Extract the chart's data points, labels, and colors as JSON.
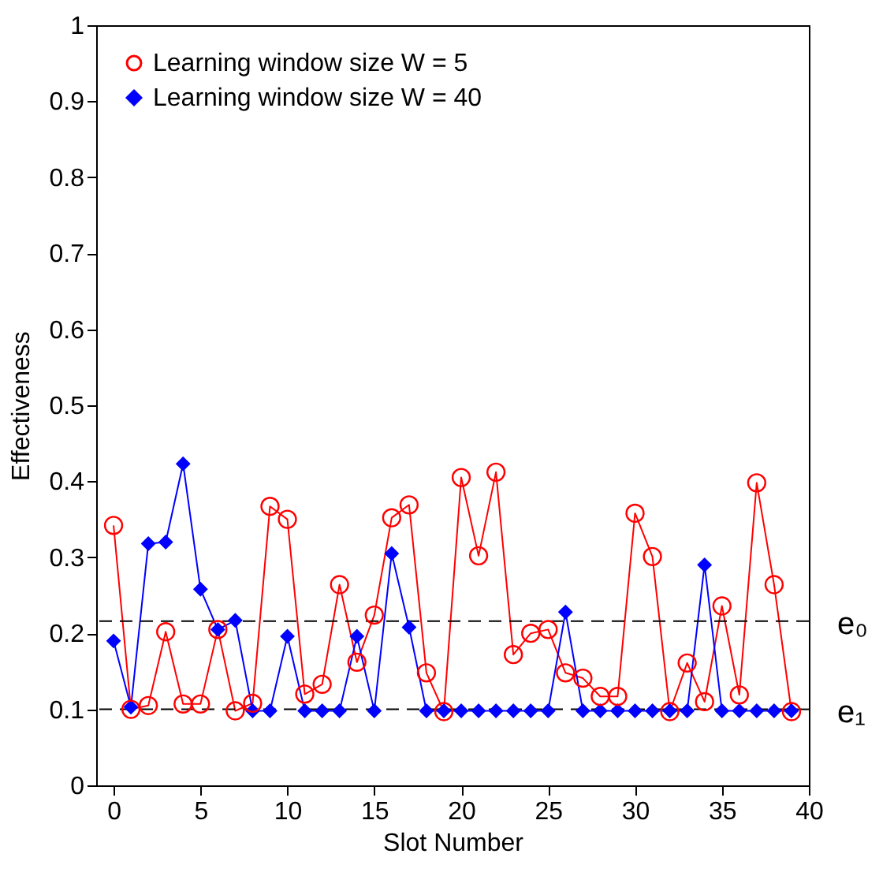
{
  "chart_data": {
    "type": "line",
    "xlabel": "Slot Number",
    "ylabel": "Effectiveness",
    "x": [
      0,
      1,
      2,
      3,
      4,
      5,
      6,
      7,
      8,
      9,
      10,
      11,
      12,
      13,
      14,
      15,
      16,
      17,
      18,
      19,
      20,
      21,
      22,
      23,
      24,
      25,
      26,
      27,
      28,
      29,
      30,
      31,
      32,
      33,
      34,
      35,
      36,
      37,
      38,
      39
    ],
    "series": [
      {
        "name": "Learning window size W = 5",
        "color": "#ff0000",
        "marker": "circle",
        "values": [
          0.342,
          0.1,
          0.105,
          0.202,
          0.107,
          0.107,
          0.205,
          0.098,
          0.108,
          0.367,
          0.35,
          0.12,
          0.133,
          0.264,
          0.162,
          0.224,
          0.352,
          0.369,
          0.148,
          0.097,
          0.405,
          0.302,
          0.412,
          0.172,
          0.2,
          0.205,
          0.148,
          0.141,
          0.117,
          0.117,
          0.358,
          0.301,
          0.097,
          0.161,
          0.11,
          0.236,
          0.119,
          0.398,
          0.264,
          0.097
        ]
      },
      {
        "name": "Learning window size W = 40",
        "color": "#0000ff",
        "marker": "diamond",
        "values": [
          0.19,
          0.103,
          0.318,
          0.32,
          0.423,
          0.258,
          0.205,
          0.217,
          0.098,
          0.098,
          0.196,
          0.098,
          0.098,
          0.098,
          0.196,
          0.098,
          0.305,
          0.208,
          0.098,
          0.098,
          0.098,
          0.098,
          0.098,
          0.098,
          0.098,
          0.098,
          0.228,
          0.098,
          0.098,
          0.098,
          0.098,
          0.098,
          0.098,
          0.098,
          0.29,
          0.098,
          0.098,
          0.098,
          0.098,
          0.098
        ]
      }
    ],
    "xlim": [
      -1,
      40
    ],
    "xticks": [
      0,
      5,
      10,
      15,
      20,
      25,
      30,
      35,
      40
    ],
    "ylim": [
      0,
      1
    ],
    "yticks": [
      {
        "value": 0,
        "label": "0"
      },
      0.1,
      0.2,
      0.3,
      0.4,
      0.5,
      0.6,
      0.7,
      0.8,
      0.9,
      {
        "value": 1,
        "label": "1"
      }
    ],
    "ref_lines": [
      {
        "axis": "y",
        "value": 0.216,
        "label": "e₀",
        "color": "#000000",
        "line_style": "dashed"
      },
      {
        "axis": "y",
        "value": 0.1,
        "label": "e₁",
        "color": "#000000",
        "line_style": "dashed"
      }
    ],
    "grid": false,
    "legend": "top left"
  }
}
